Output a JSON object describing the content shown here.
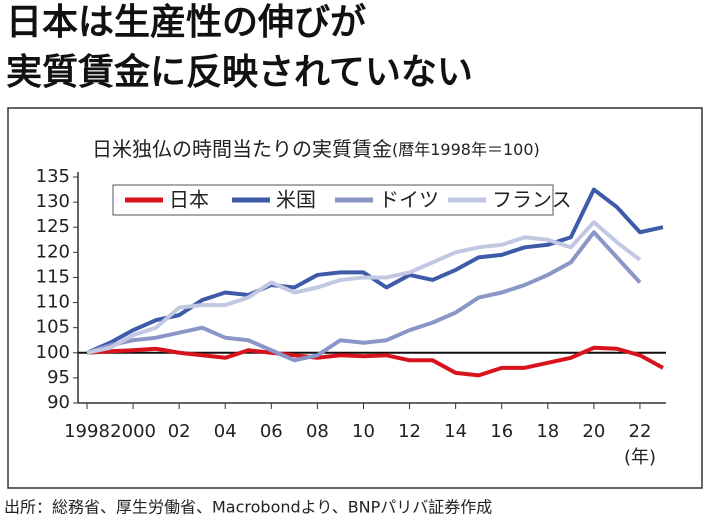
{
  "headline": [
    "日本は生産性の伸びが",
    "実質賃金に反映されていない"
  ],
  "chart_data": {
    "type": "line",
    "title": "日米独仏の時間当たりの実質賃金",
    "subtitle": "(暦年1998年＝100)",
    "x_unit": "(年)",
    "x": [
      1998,
      1999,
      2000,
      2001,
      2002,
      2003,
      2004,
      2005,
      2006,
      2007,
      2008,
      2009,
      2010,
      2011,
      2012,
      2013,
      2014,
      2015,
      2016,
      2017,
      2018,
      2019,
      2020,
      2021,
      2022,
      2023
    ],
    "xlim": [
      1998,
      2023
    ],
    "xticks": [
      1998,
      2000,
      {
        "value": 2002,
        "label": "02"
      },
      {
        "value": 2004,
        "label": "04"
      },
      {
        "value": 2006,
        "label": "06"
      },
      {
        "value": 2008,
        "label": "08"
      },
      {
        "value": 2010,
        "label": "10"
      },
      {
        "value": 2012,
        "label": "12"
      },
      {
        "value": 2014,
        "label": "14"
      },
      {
        "value": 2016,
        "label": "16"
      },
      {
        "value": 2018,
        "label": "18"
      },
      {
        "value": 2020,
        "label": "20"
      },
      {
        "value": 2022,
        "label": "22"
      }
    ],
    "ylim": [
      90,
      135
    ],
    "yticks": [
      90,
      95,
      100,
      105,
      110,
      115,
      120,
      125,
      130,
      135
    ],
    "reference_line": 100,
    "legend": "upper-left",
    "series": [
      {
        "name": "日本",
        "color": "#d7141e",
        "values": [
          100,
          100.3,
          100.5,
          100.8,
          100,
          99.5,
          99,
          100.5,
          100,
          99.5,
          99,
          99.5,
          99.3,
          99.5,
          98.5,
          98.5,
          96,
          95.5,
          97,
          97,
          98,
          99,
          101,
          100.8,
          99.5,
          97
        ]
      },
      {
        "name": "米国",
        "color": "#3d5ba8",
        "values": [
          100,
          102,
          104.5,
          106.5,
          107.5,
          110.5,
          112,
          111.5,
          113.5,
          113,
          115.5,
          116,
          116,
          113,
          115.5,
          114.5,
          116.5,
          119,
          119.5,
          121,
          121.5,
          123,
          132.5,
          129,
          124,
          125
        ]
      },
      {
        "name": "ドイツ",
        "color": "#8a96c8",
        "values": [
          100,
          101.5,
          102.5,
          103,
          104,
          105,
          103,
          102.5,
          100.5,
          98.5,
          99.5,
          102.5,
          102,
          102.5,
          104.5,
          106,
          108,
          111,
          112,
          113.5,
          115.5,
          118,
          124,
          119,
          114,
          null
        ]
      },
      {
        "name": "フランス",
        "color": "#c3c8e2",
        "values": [
          100,
          101,
          103.5,
          105,
          109,
          109.5,
          109.5,
          111,
          114,
          112,
          113,
          114.5,
          115,
          115,
          116,
          118,
          120,
          121,
          121.5,
          123,
          122.5,
          121,
          126,
          122,
          118.5,
          null
        ]
      }
    ]
  },
  "source": "出所：総務省、厚生労働省、Macrobondより、BNPパリバ証券作成"
}
